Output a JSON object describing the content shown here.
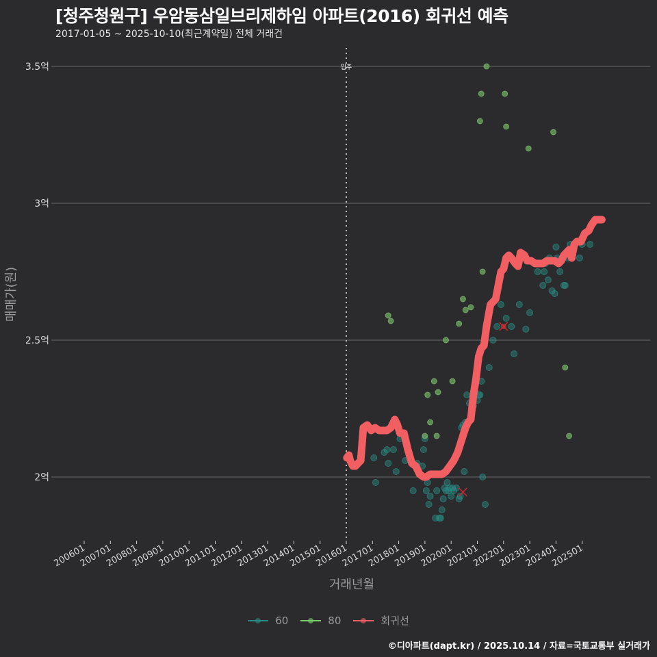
{
  "header": {
    "title": "[청주청원구] 우암동삼일브리제하임 아파트(2016) 회귀선 예측",
    "subtitle": "2017-01-05 ~ 2025-10-10(최근계약일) 전체 거래건"
  },
  "footer": {
    "credit": "©디아파트(dapt.kr) / 2025.10.14 / 자료=국토교통부 실거래가"
  },
  "colors": {
    "background": "#2b2b2d",
    "grid": "#6a6a6a",
    "series_60": "#2a8c86",
    "series_80": "#6fae5f",
    "regression": "#f25f63",
    "vline": "#bdbdbd"
  },
  "legend": {
    "items": [
      {
        "label": "60",
        "color": "#2a8c86"
      },
      {
        "label": "80",
        "color": "#7ad06a"
      },
      {
        "label": "회귀선",
        "color": "#f25f63"
      }
    ]
  },
  "chart_data": {
    "type": "scatter",
    "title": "[청주청원구] 우암동삼일브리제하임 아파트(2016) 회귀선 예측",
    "subtitle": "2017-01-05 ~ 2025-10-10(최근계약일) 전체 거래건",
    "xlabel": "거래년월",
    "ylabel": "매매가(원)",
    "x_ticks": [
      "200601",
      "200701",
      "200801",
      "200901",
      "201001",
      "201101",
      "201201",
      "201301",
      "201401",
      "201501",
      "201601",
      "201701",
      "201801",
      "201901",
      "202001",
      "202101",
      "202201",
      "202301",
      "202401",
      "202501"
    ],
    "y_ticks": [
      "2억",
      "2.5억",
      "3억",
      "3.5억"
    ],
    "y_tick_values": [
      2.0,
      2.5,
      3.0,
      3.5
    ],
    "ylim": [
      1.77,
      3.57
    ],
    "xlim": [
      2005.0,
      2026.0
    ],
    "grid": "horizontal",
    "legend_position": "bottom",
    "annotation": {
      "label": "입주",
      "x": 2016.0
    },
    "marked_point": {
      "x": 2022.0,
      "y": 2.55,
      "marker": "x"
    },
    "series": [
      {
        "name": "60",
        "x": [
          2017.05,
          2017.12,
          2017.45,
          2017.55,
          2017.6,
          2017.8,
          2017.9,
          2018.05,
          2018.25,
          2018.55,
          2018.7,
          2018.9,
          2018.95,
          2019.0,
          2019.05,
          2019.1,
          2019.15,
          2019.2,
          2019.4,
          2019.45,
          2019.55,
          2019.6,
          2019.65,
          2019.7,
          2019.75,
          2019.8,
          2019.85,
          2019.9,
          2019.95,
          2020.0,
          2020.05,
          2020.1,
          2020.2,
          2020.3,
          2020.35,
          2020.4,
          2020.45,
          2020.5,
          2020.55,
          2020.6,
          2020.7,
          2020.85,
          2021.0,
          2021.05,
          2021.1,
          2021.15,
          2021.2,
          2021.3,
          2021.45,
          2021.6,
          2021.75,
          2021.9,
          2022.1,
          2022.3,
          2022.4,
          2022.6,
          2022.85,
          2023.0,
          2023.3,
          2023.5,
          2023.55,
          2023.6,
          2023.7,
          2023.75,
          2023.85,
          2023.95,
          2024.0,
          2024.05,
          2024.15,
          2024.3,
          2024.35,
          2024.45,
          2024.55,
          2024.9,
          2025.0,
          2025.3
        ],
        "y": [
          2.07,
          1.98,
          2.09,
          2.1,
          2.05,
          2.1,
          2.02,
          2.14,
          2.06,
          1.95,
          2.05,
          2.04,
          2.1,
          2.14,
          1.95,
          1.98,
          1.9,
          1.93,
          1.85,
          1.95,
          1.85,
          1.85,
          1.88,
          1.92,
          1.96,
          1.95,
          1.98,
          1.95,
          1.96,
          1.93,
          1.96,
          1.95,
          1.96,
          1.92,
          1.93,
          2.18,
          2.19,
          2.02,
          2.2,
          2.3,
          2.27,
          2.26,
          2.28,
          2.3,
          2.3,
          2.35,
          2.0,
          1.9,
          2.4,
          2.5,
          2.55,
          2.63,
          2.58,
          2.55,
          2.45,
          2.63,
          2.54,
          2.6,
          2.75,
          2.7,
          2.75,
          2.78,
          2.72,
          2.8,
          2.68,
          2.67,
          2.84,
          2.8,
          2.75,
          2.7,
          2.7,
          2.8,
          2.85,
          2.8,
          2.85,
          2.85
        ]
      },
      {
        "name": "80",
        "x": [
          2017.6,
          2017.7,
          2019.0,
          2019.1,
          2019.2,
          2019.35,
          2019.45,
          2019.5,
          2019.8,
          2020.05,
          2020.3,
          2020.45,
          2020.55,
          2020.75,
          2021.1,
          2021.15,
          2021.2,
          2021.35,
          2022.05,
          2022.1,
          2022.95,
          2023.9,
          2024.35,
          2024.5
        ],
        "y": [
          2.59,
          2.57,
          2.15,
          2.3,
          2.2,
          2.35,
          2.15,
          2.31,
          2.5,
          2.35,
          2.56,
          2.65,
          2.61,
          2.62,
          3.3,
          3.4,
          2.75,
          3.5,
          3.4,
          3.28,
          3.2,
          3.26,
          2.4,
          2.15
        ]
      },
      {
        "name": "회귀선",
        "x": [
          2016.02,
          2016.1,
          2016.15,
          2016.25,
          2016.35,
          2016.45,
          2016.55,
          2016.65,
          2016.8,
          2016.95,
          2017.1,
          2017.25,
          2017.4,
          2017.55,
          2017.7,
          2017.85,
          2017.95,
          2018.05,
          2018.2,
          2018.35,
          2018.5,
          2018.65,
          2018.8,
          2018.95,
          2019.05,
          2019.2,
          2019.35,
          2019.5,
          2019.65,
          2019.8,
          2019.95,
          2020.1,
          2020.25,
          2020.35,
          2020.45,
          2020.55,
          2020.65,
          2020.75,
          2020.85,
          2020.95,
          2021.05,
          2021.15,
          2021.25,
          2021.35,
          2021.5,
          2021.6,
          2021.7,
          2021.8,
          2021.9,
          2022.0,
          2022.1,
          2022.2,
          2022.3,
          2022.45,
          2022.55,
          2022.65,
          2022.8,
          2022.9,
          2023.05,
          2023.2,
          2023.35,
          2023.5,
          2023.65,
          2023.8,
          2023.95,
          2024.1,
          2024.2,
          2024.3,
          2024.4,
          2024.5,
          2024.6,
          2024.7,
          2024.8,
          2024.95,
          2025.1,
          2025.25,
          2025.35,
          2025.5,
          2025.65,
          2025.75
        ],
        "y": [
          2.07,
          2.08,
          2.06,
          2.04,
          2.04,
          2.05,
          2.06,
          2.18,
          2.19,
          2.17,
          2.18,
          2.17,
          2.17,
          2.17,
          2.18,
          2.21,
          2.19,
          2.16,
          2.16,
          2.1,
          2.05,
          2.04,
          2.01,
          2.0,
          2.0,
          2.01,
          2.01,
          2.01,
          2.01,
          2.02,
          2.04,
          2.06,
          2.09,
          2.12,
          2.15,
          2.18,
          2.2,
          2.21,
          2.3,
          2.36,
          2.44,
          2.47,
          2.48,
          2.55,
          2.63,
          2.64,
          2.65,
          2.7,
          2.75,
          2.76,
          2.8,
          2.81,
          2.8,
          2.78,
          2.77,
          2.82,
          2.81,
          2.79,
          2.79,
          2.78,
          2.78,
          2.78,
          2.79,
          2.79,
          2.79,
          2.78,
          2.79,
          2.81,
          2.82,
          2.83,
          2.8,
          2.85,
          2.86,
          2.86,
          2.89,
          2.9,
          2.92,
          2.94,
          2.94,
          2.94
        ]
      }
    ]
  }
}
